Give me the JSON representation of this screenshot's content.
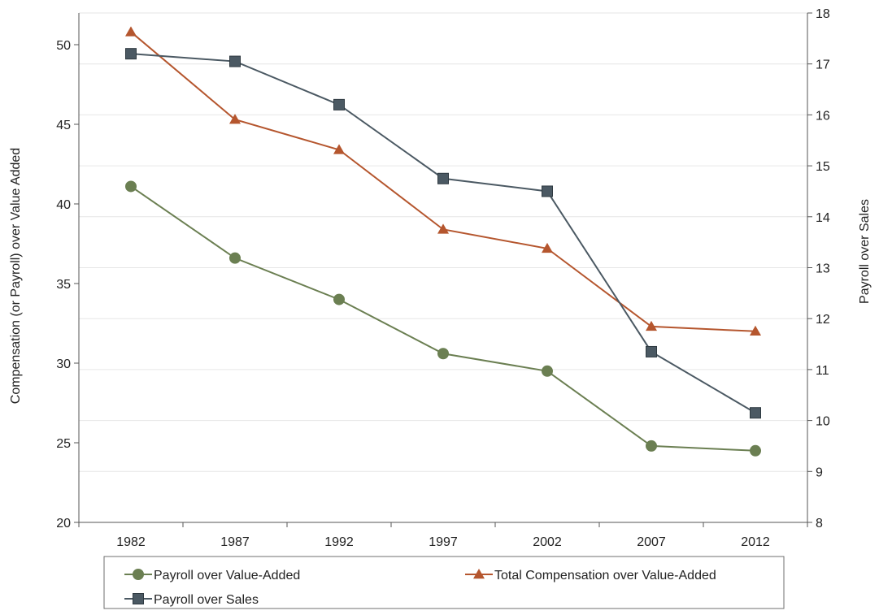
{
  "chart_data": {
    "type": "line",
    "categories": [
      "1982",
      "1987",
      "1992",
      "1997",
      "2002",
      "2007",
      "2012"
    ],
    "x_axis_label": "",
    "y_left": {
      "label": "Compensation (or Payroll) over Value Added",
      "range": [
        20,
        50
      ],
      "ticks": [
        "20",
        "25",
        "30",
        "35",
        "40",
        "45",
        "50"
      ]
    },
    "y_right": {
      "label": "Payroll over Sales",
      "range": [
        8,
        18
      ],
      "ticks": [
        "8",
        "9",
        "10",
        "11",
        "12",
        "13",
        "14",
        "15",
        "16",
        "17",
        "18"
      ]
    },
    "grid": "horizontal",
    "legend_position": "bottom",
    "series": [
      {
        "name": "Payroll over Value-Added",
        "axis": "left",
        "marker": "circle",
        "color": "#6b7f52",
        "values": [
          41.1,
          36.6,
          34.0,
          30.6,
          29.5,
          24.8,
          24.5
        ]
      },
      {
        "name": "Total Compensation over Value-Added",
        "axis": "left",
        "marker": "triangle",
        "color": "#b5562e",
        "values": [
          50.8,
          45.3,
          43.4,
          38.4,
          37.2,
          32.3,
          32.0
        ]
      },
      {
        "name": "Payroll over Sales",
        "axis": "right",
        "marker": "square",
        "color": "#4b5963",
        "values": [
          17.2,
          17.05,
          16.2,
          14.75,
          14.5,
          11.35,
          10.15
        ]
      }
    ]
  }
}
